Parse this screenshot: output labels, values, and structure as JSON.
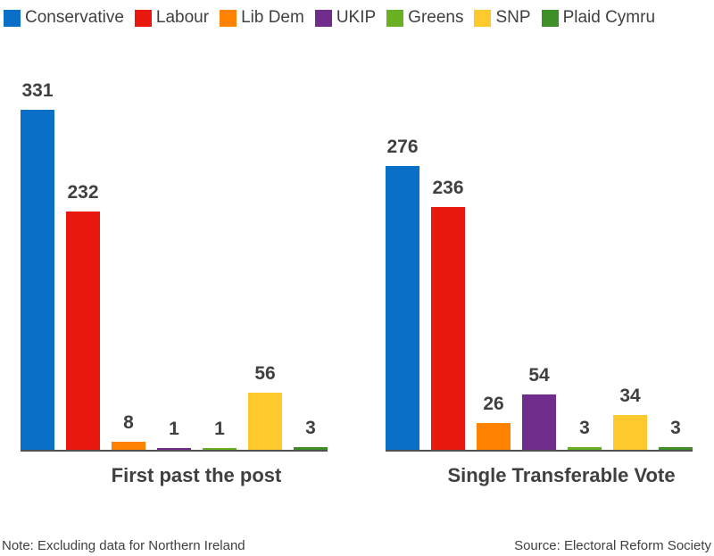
{
  "legend": [
    {
      "label": "Conservative",
      "color": "#0a6fc7"
    },
    {
      "label": "Labour",
      "color": "#e9190f"
    },
    {
      "label": "Lib Dem",
      "color": "#ff8200"
    },
    {
      "label": "UKIP",
      "color": "#702d8c"
    },
    {
      "label": "Greens",
      "color": "#6ab023"
    },
    {
      "label": "SNP",
      "color": "#fec92d"
    },
    {
      "label": "Plaid Cymru",
      "color": "#3f8f28"
    }
  ],
  "footer": {
    "note": "Note: Excluding data for Northern Ireland",
    "source": "Source: Electoral Reform Society"
  },
  "chart_data": [
    {
      "type": "bar",
      "title": "First past the post",
      "categories": [
        "Conservative",
        "Labour",
        "Lib Dem",
        "UKIP",
        "Greens",
        "SNP",
        "Plaid Cymru"
      ],
      "values": [
        331,
        232,
        8,
        1,
        1,
        56,
        3
      ],
      "labels": [
        "331",
        "232",
        "8",
        "1",
        "1",
        "56",
        "3"
      ],
      "xlabel": "",
      "ylabel": "",
      "ylim": [
        0,
        331
      ],
      "grid": false,
      "legend_position": "top"
    },
    {
      "type": "bar",
      "title": "Single Transferable Vote",
      "categories": [
        "Conservative",
        "Labour",
        "Lib Dem",
        "UKIP",
        "Greens",
        "SNP",
        "Plaid Cymru"
      ],
      "values": [
        276,
        236,
        26,
        54,
        3,
        34,
        3
      ],
      "labels": [
        "276",
        "236",
        "26",
        "54",
        "3",
        "34",
        "3"
      ],
      "xlabel": "",
      "ylabel": "",
      "ylim": [
        0,
        331
      ],
      "grid": false,
      "legend_position": "top"
    }
  ]
}
